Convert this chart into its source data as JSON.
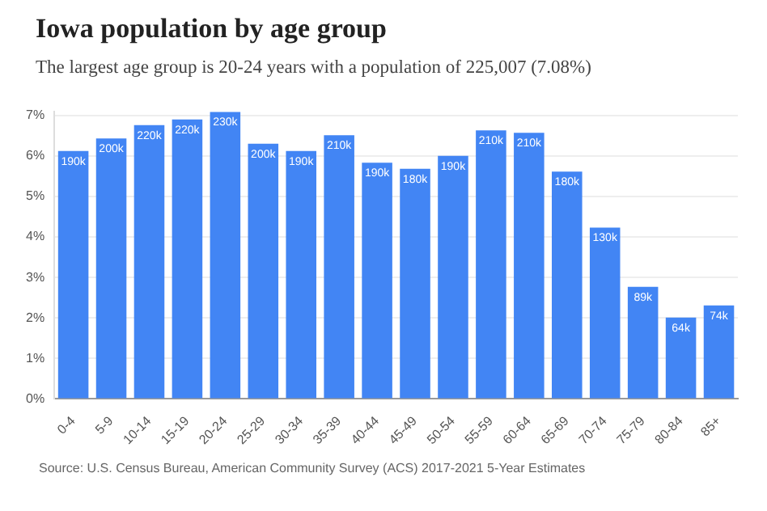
{
  "chart_data": {
    "type": "bar",
    "title": "Iowa population by age group",
    "subtitle": "The largest age group is 20-24 years with a population of 225,007 (7.08%)",
    "categories": [
      "0-4",
      "5-9",
      "10-14",
      "15-19",
      "20-24",
      "25-29",
      "30-34",
      "35-39",
      "40-44",
      "45-49",
      "50-54",
      "55-59",
      "60-64",
      "65-69",
      "70-74",
      "75-79",
      "80-84",
      "85+"
    ],
    "values": [
      6.12,
      6.43,
      6.76,
      6.9,
      7.08,
      6.3,
      6.12,
      6.51,
      5.83,
      5.68,
      6.0,
      6.63,
      6.57,
      5.61,
      4.23,
      2.77,
      2.01,
      2.31
    ],
    "color": "#4285f4",
    "ylim": [
      0,
      7.1
    ],
    "yticks": [
      {
        "value": 0,
        "label": "0%"
      },
      {
        "value": 1,
        "label": "1%"
      },
      {
        "value": 2,
        "label": "2%"
      },
      {
        "value": 3,
        "label": "3%"
      },
      {
        "value": 4,
        "label": "4%"
      },
      {
        "value": 5,
        "label": "5%"
      },
      {
        "value": 6,
        "label": "6%"
      },
      {
        "value": 7,
        "label": "7%"
      }
    ],
    "grid": "y",
    "legend": false,
    "annotations": [
      "Source: U.S. Census Bureau, American Community Survey (ACS) 2017-2021 5-Year Estimates",
      {
        "text": "190k",
        "x": "0-4",
        "y": 6.12
      },
      {
        "text": "200k",
        "x": "5-9",
        "y": 6.43
      },
      {
        "text": "220k",
        "x": "10-14",
        "y": 6.76
      },
      {
        "text": "220k",
        "x": "15-19",
        "y": 6.9
      },
      {
        "text": "230k",
        "x": "20-24",
        "y": 7.08
      },
      {
        "text": "200k",
        "x": "25-29",
        "y": 6.3
      },
      {
        "text": "190k",
        "x": "30-34",
        "y": 6.12
      },
      {
        "text": "210k",
        "x": "35-39",
        "y": 6.51
      },
      {
        "text": "190k",
        "x": "40-44",
        "y": 5.83
      },
      {
        "text": "180k",
        "x": "45-49",
        "y": 5.68
      },
      {
        "text": "190k",
        "x": "50-54",
        "y": 6.0
      },
      {
        "text": "210k",
        "x": "55-59",
        "y": 6.63
      },
      {
        "text": "210k",
        "x": "60-64",
        "y": 6.57
      },
      {
        "text": "180k",
        "x": "65-69",
        "y": 5.61
      },
      {
        "text": "130k",
        "x": "70-74",
        "y": 4.23
      },
      {
        "text": "89k",
        "x": "75-79",
        "y": 2.77
      },
      {
        "text": "64k",
        "x": "80-84",
        "y": 2.01
      },
      {
        "text": "74k",
        "x": "85+",
        "y": 2.31
      }
    ]
  }
}
